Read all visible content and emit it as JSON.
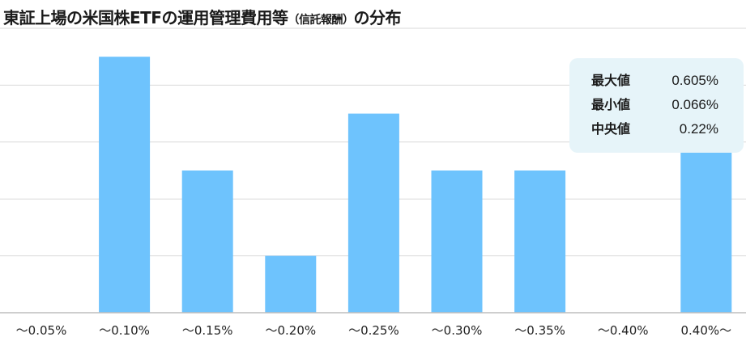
{
  "title": {
    "main": "東証上場の米国株ETFの運用管理費用等",
    "sub": "（信託報酬）",
    "tail": "の分布"
  },
  "colors": {
    "bar": "#6ec3fd",
    "grid": "#d9d9d9",
    "axis": "#bdbdbd",
    "stats_bg": "#e6f4f9"
  },
  "stats": [
    {
      "label": "最大値",
      "value": "0.605%"
    },
    {
      "label": "最小値",
      "value": "0.066%"
    },
    {
      "label": "中央値",
      "value": "0.22%"
    }
  ],
  "chart_data": {
    "type": "bar",
    "categories": [
      "〜0.05%",
      "〜0.10%",
      "〜0.15%",
      "〜0.20%",
      "〜0.25%",
      "〜0.30%",
      "〜0.35%",
      "〜0.40%",
      "0.40%〜"
    ],
    "values": [
      0,
      9,
      5,
      2,
      7,
      5,
      5,
      0,
      6
    ],
    "ylim": [
      0,
      10
    ],
    "grid": true,
    "ylabel": "",
    "xlabel": ""
  }
}
